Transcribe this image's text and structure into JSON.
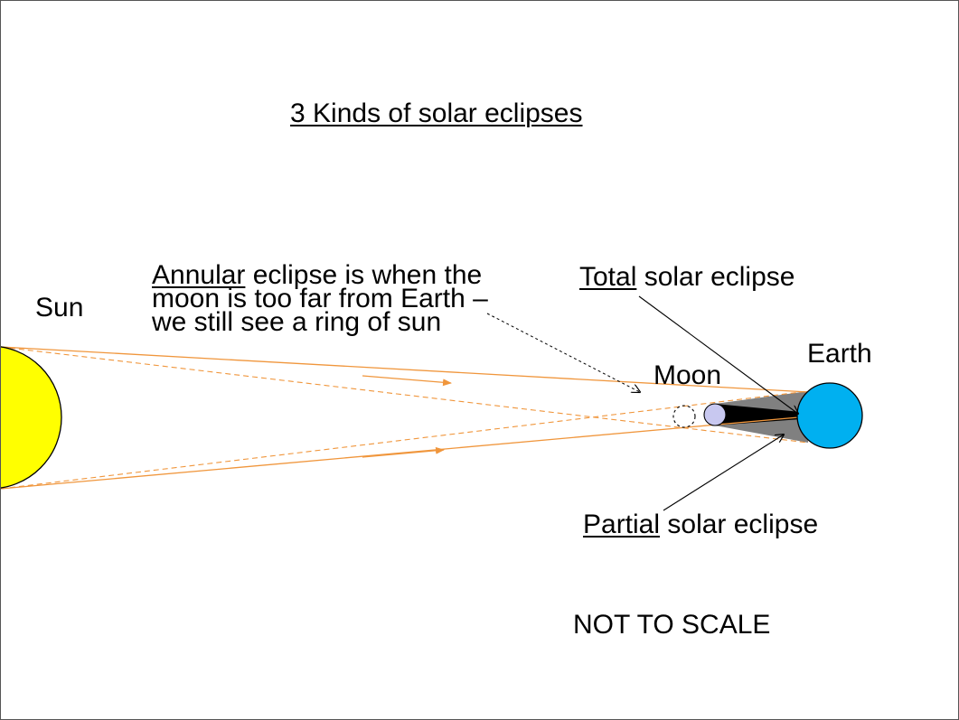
{
  "title": "3 Kinds of solar eclipses",
  "bodies": {
    "sun": "Sun",
    "moon": "Moon",
    "earth": "Earth"
  },
  "annular": {
    "keyword": "Annular",
    "line1_rest": " eclipse is when the",
    "line2": "moon is too far from Earth –",
    "line3": "we still see a ring of sun"
  },
  "total": {
    "keyword": "Total",
    "rest": " solar eclipse"
  },
  "partial": {
    "keyword": "Partial",
    "rest": " solar eclipse"
  },
  "note": "NOT TO SCALE",
  "colors": {
    "sun": "#ffff00",
    "earth": "#00b0f0",
    "moon": "#c8c8f0",
    "rays": "#f0963c",
    "umbra": "#000000",
    "penumbra": "#808080"
  }
}
